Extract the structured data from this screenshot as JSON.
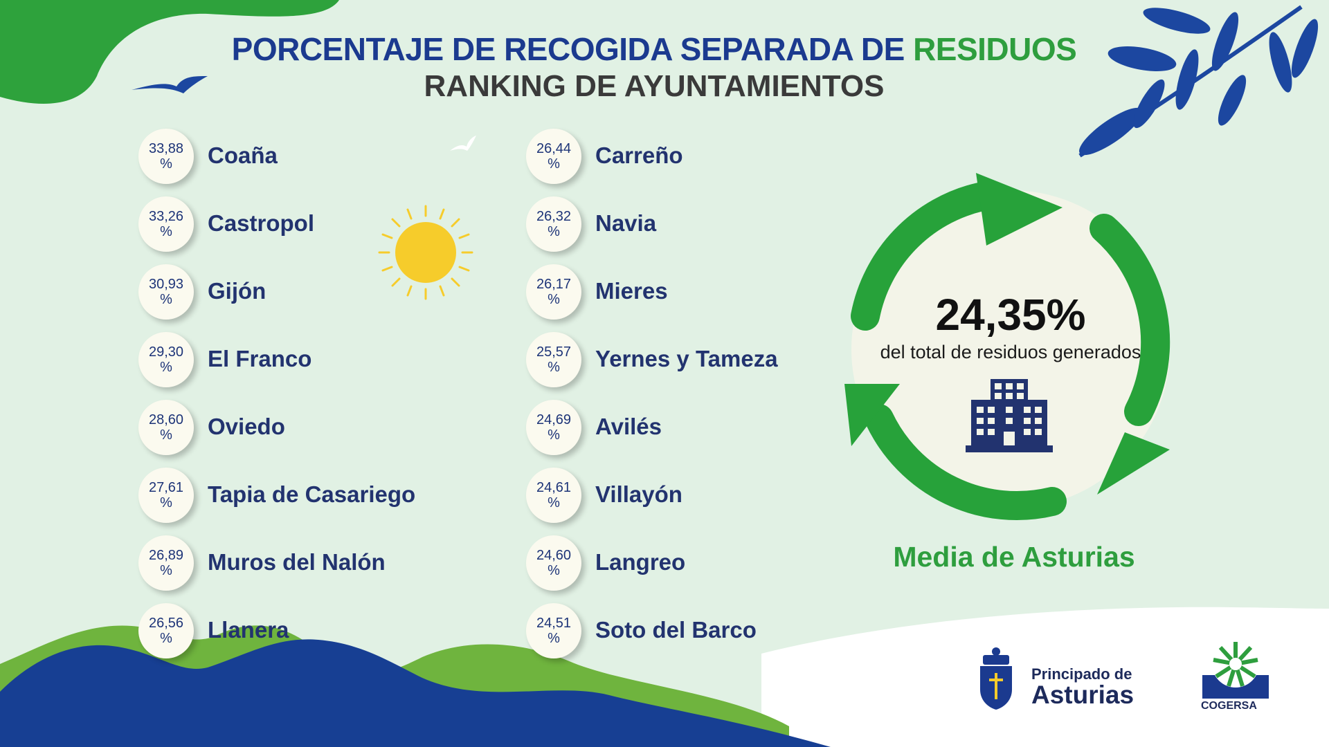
{
  "header": {
    "title_part1": "PORCENTAJE DE RECOGIDA SEPARADA DE",
    "title_part2": "RESIDUOS",
    "subtitle": "RANKING DE AYUNTAMIENTOS"
  },
  "chart_data": {
    "type": "table",
    "title": "PORCENTAJE DE RECOGIDA SEPARADA DE RESIDUOS",
    "subtitle": "RANKING DE AYUNTAMIENTOS",
    "unit": "%",
    "rows": [
      {
        "name": "Coaña",
        "value": "33,88"
      },
      {
        "name": "Castropol",
        "value": "33,26"
      },
      {
        "name": "Gijón",
        "value": "30,93"
      },
      {
        "name": "El Franco",
        "value": "29,30"
      },
      {
        "name": "Oviedo",
        "value": "28,60"
      },
      {
        "name": "Tapia de Casariego",
        "value": "27,61"
      },
      {
        "name": "Muros del Nalón",
        "value": "26,89"
      },
      {
        "name": "Llanera",
        "value": "26,56"
      },
      {
        "name": "Carreño",
        "value": "26,44"
      },
      {
        "name": "Navia",
        "value": "26,32"
      },
      {
        "name": "Mieres",
        "value": "26,17"
      },
      {
        "name": "Yernes y Tameza",
        "value": "25,57"
      },
      {
        "name": "Avilés",
        "value": "24,69"
      },
      {
        "name": "Villayón",
        "value": "24,61"
      },
      {
        "name": "Langreo",
        "value": "24,60"
      },
      {
        "name": "Soto del Barco",
        "value": "24,51"
      }
    ]
  },
  "summary": {
    "value": "24,35%",
    "description": "del total de residuos generados",
    "label": "Media de Asturias"
  },
  "logos": {
    "gov_line1": "Principado de",
    "gov_line2": "Asturias",
    "cogersa": "COGERSA"
  },
  "icons": [
    "bird-icon",
    "sun-icon",
    "leaf-branch-icon",
    "recycle-arrows-icon",
    "building-icon",
    "coat-of-arms-icon",
    "cogersa-logo-icon"
  ],
  "colors": {
    "navy": "#1b3a8f",
    "green": "#2e9e3e",
    "recycle_green": "#27a23a",
    "sun": "#f6cc2b",
    "background": "#e1f1e4"
  }
}
